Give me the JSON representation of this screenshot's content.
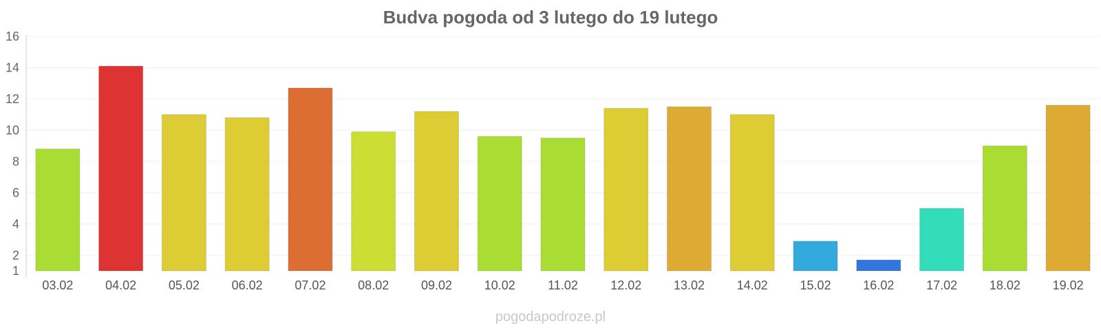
{
  "chart_data": {
    "type": "bar",
    "title": "Budva pogoda od 3 lutego do 19 lutego",
    "xlabel": "",
    "ylabel": "",
    "ylim": [
      1,
      16
    ],
    "yticks": [
      1,
      2,
      4,
      6,
      8,
      10,
      12,
      14,
      16
    ],
    "grid": true,
    "categories": [
      "03.02",
      "04.02",
      "05.02",
      "06.02",
      "07.02",
      "08.02",
      "09.02",
      "10.02",
      "11.02",
      "12.02",
      "13.02",
      "14.02",
      "15.02",
      "16.02",
      "17.02",
      "18.02",
      "19.02"
    ],
    "values": [
      8.8,
      14.1,
      11.0,
      10.8,
      12.7,
      9.9,
      11.2,
      9.6,
      9.5,
      11.4,
      11.5,
      11.0,
      2.9,
      1.7,
      5.0,
      9.0,
      11.6
    ],
    "colors": [
      "#aadd33",
      "#dd3333",
      "#ddcc33",
      "#ddcc33",
      "#dd6e33",
      "#ccdd33",
      "#ddcc33",
      "#aadd33",
      "#aadd33",
      "#ddcc33",
      "#ddaa33",
      "#ddcc33",
      "#33aadd",
      "#3377dd",
      "#33ddbb",
      "#aadd33",
      "#ddaa33"
    ]
  },
  "footer": {
    "watermark": "pogodapodroze.pl"
  }
}
